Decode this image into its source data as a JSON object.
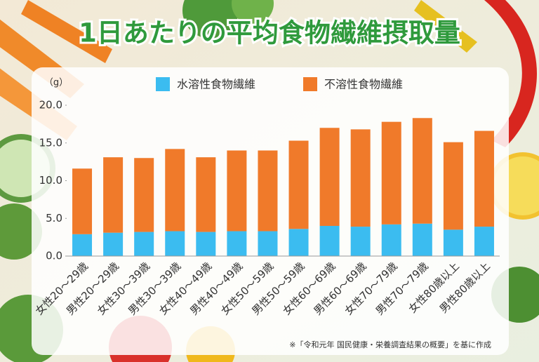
{
  "chart_data": {
    "type": "stacked_bar",
    "title": "1日あたりの平均食物繊維摂取量",
    "y_unit": "（g）",
    "note": "※「令和元年 国民健康・栄養調査結果の概要」を基に作成",
    "categories": [
      "女性20～29歳",
      "男性20～29歳",
      "女性30～39歳",
      "男性30～39歳",
      "女性40～49歳",
      "男性40～49歳",
      "女性50～59歳",
      "男性50～59歳",
      "女性60～69歳",
      "男性60～69歳",
      "女性70～79歳",
      "男性70～79歳",
      "女性80歳以上",
      "男性80歳以上"
    ],
    "series": [
      {
        "name": "水溶性食物繊維",
        "color": "#3bbcf0",
        "values": [
          2.9,
          3.1,
          3.2,
          3.3,
          3.2,
          3.3,
          3.3,
          3.6,
          4.0,
          3.9,
          4.2,
          4.3,
          3.5,
          3.9
        ]
      },
      {
        "name": "不溶性食物繊維",
        "color": "#f07a2a",
        "values": [
          8.7,
          10.0,
          9.8,
          10.9,
          9.9,
          10.7,
          10.7,
          11.7,
          13.0,
          12.9,
          13.6,
          14.0,
          11.6,
          12.7
        ]
      }
    ],
    "ylim": [
      0,
      20
    ],
    "yticks": [
      {
        "value": 0,
        "label": "0.0"
      },
      {
        "value": 5,
        "label": "5.0"
      },
      {
        "value": 10,
        "label": "10.0"
      },
      {
        "value": 15,
        "label": "15.0"
      },
      {
        "value": 20,
        "label": "20.0"
      }
    ]
  }
}
